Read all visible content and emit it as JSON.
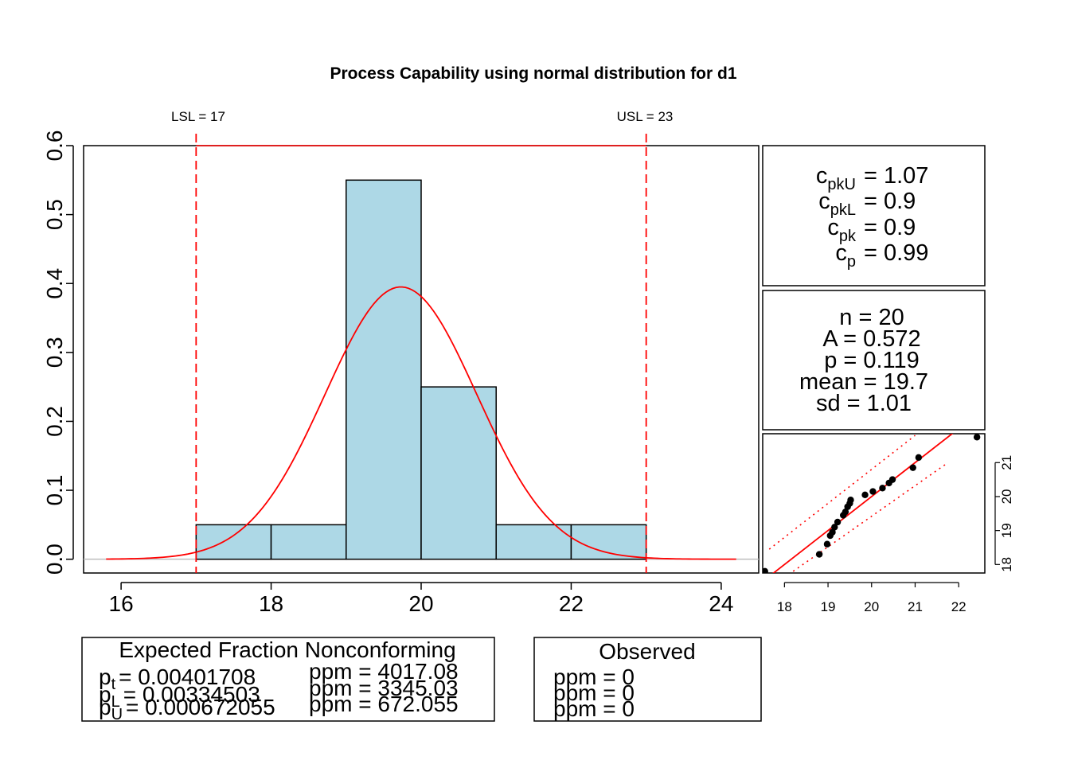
{
  "title": "Process Capability using normal distribution for d1",
  "spec_limits": {
    "lsl_label": "LSL = 17",
    "usl_label": "USL = 23",
    "lsl": 17,
    "usl": 23
  },
  "chart_data": [
    {
      "type": "bar",
      "subtype": "histogram",
      "title": "Process Capability using normal distribution for d1",
      "xlim": [
        15.5,
        24.5
      ],
      "ylim": [
        -0.02,
        0.6
      ],
      "x_ticks": [
        "16",
        "18",
        "20",
        "22",
        "24"
      ],
      "y_ticks": [
        "0.0",
        "0.1",
        "0.2",
        "0.3",
        "0.4",
        "0.5",
        "0.6"
      ],
      "bins": [
        {
          "from": 17,
          "to": 18,
          "density": 0.05
        },
        {
          "from": 18,
          "to": 19,
          "density": 0.05
        },
        {
          "from": 19,
          "to": 20,
          "density": 0.55
        },
        {
          "from": 20,
          "to": 21,
          "density": 0.25
        },
        {
          "from": 21,
          "to": 22,
          "density": 0.05
        },
        {
          "from": 22,
          "to": 23,
          "density": 0.05
        }
      ],
      "density_curve": {
        "distribution": "normal",
        "mean": 19.73,
        "sd": 1.01,
        "x_range": [
          15.8,
          24.2
        ]
      },
      "colors": {
        "bar_fill": "#ADD8E6",
        "curve": "#FF0000",
        "spec_line": "#FF0000",
        "baseline": "#BEBEBE"
      }
    },
    {
      "type": "scatter",
      "subtype": "qq-plot",
      "xlim": [
        17.5,
        22.6
      ],
      "ylim": [
        17.75,
        21.85
      ],
      "x_ticks": [
        "18",
        "19",
        "20",
        "21",
        "22"
      ],
      "y_ticks": [
        "18",
        "19",
        "20",
        "21"
      ],
      "points": [
        [
          17.55,
          17.8
        ],
        [
          18.8,
          18.3
        ],
        [
          18.98,
          18.6
        ],
        [
          19.05,
          18.85
        ],
        [
          19.1,
          18.95
        ],
        [
          19.15,
          19.1
        ],
        [
          19.22,
          19.25
        ],
        [
          19.35,
          19.45
        ],
        [
          19.4,
          19.55
        ],
        [
          19.45,
          19.7
        ],
        [
          19.5,
          19.8
        ],
        [
          19.52,
          19.9
        ],
        [
          19.85,
          20.05
        ],
        [
          20.03,
          20.15
        ],
        [
          20.25,
          20.25
        ],
        [
          20.4,
          20.4
        ],
        [
          20.48,
          20.5
        ],
        [
          20.95,
          20.85
        ],
        [
          21.08,
          21.15
        ],
        [
          22.42,
          21.75
        ]
      ],
      "fit_line": {
        "intercept": 0.0,
        "slope": 1.0,
        "x_range": [
          17.4,
          22.6
        ]
      },
      "confidence_bands": {
        "type": "pointwise",
        "lines": [
          [
            [
              17.65,
              18.45
            ],
            [
              21.0,
              21.8
            ]
          ],
          [
            [
              18.2,
              17.8
            ],
            [
              21.7,
              20.95
            ]
          ]
        ]
      },
      "colors": {
        "points": "#000000",
        "line": "#FF0000",
        "bands": "#FF0000"
      }
    }
  ],
  "capability": {
    "cpkU": {
      "sym": "c",
      "sub": "pkU",
      "value": "= 1.07"
    },
    "cpkL": {
      "sym": "c",
      "sub": "pkL",
      "value": "= 0.9"
    },
    "cpk": {
      "sym": "c",
      "sub": "pk",
      "value": "= 0.9"
    },
    "cp": {
      "sym": "c",
      "sub": "p",
      "value": "= 0.99"
    }
  },
  "stats": [
    "n = 20",
    "A = 0.572",
    "p = 0.119",
    "mean = 19.7",
    "sd = 1.01"
  ],
  "expected": {
    "title": "Expected Fraction Nonconforming",
    "rows": [
      {
        "sym": "p",
        "sub": "t",
        "value": "= 0.00401708",
        "ppm": "ppm = 4017.08"
      },
      {
        "sym": "p",
        "sub": "L",
        "value": "= 0.00334503",
        "ppm": "ppm = 3345.03"
      },
      {
        "sym": "p",
        "sub": "U",
        "value": "= 0.000672055",
        "ppm": "ppm = 672.055"
      }
    ]
  },
  "observed": {
    "title": "Observed",
    "rows": [
      "ppm = 0",
      "ppm = 0",
      "ppm = 0"
    ]
  }
}
